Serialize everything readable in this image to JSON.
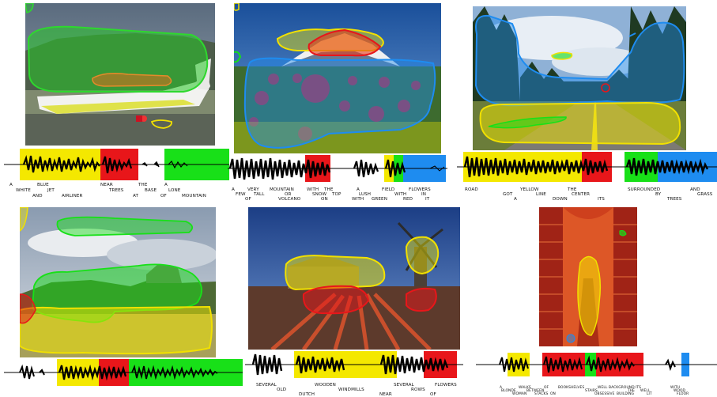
{
  "panels": [
    {
      "caption_words": [
        "A",
        "WHITE",
        "BLUE",
        "AND",
        "JET",
        "AIRLINER",
        "NEAR",
        "TREES",
        "AT",
        "THE",
        "BASE",
        "OF",
        "A",
        "LONE",
        "MOUNTAIN"
      ],
      "segment_colors": [
        "#f4e800",
        "#e8161a",
        "#f4e800",
        "#18e018"
      ]
    },
    {
      "caption_words": [
        "A",
        "FEW",
        "VERY",
        "OF",
        "TALL",
        "MOUNTAIN",
        "OR",
        "VOLCANO",
        "WITH",
        "SNOW",
        "ON",
        "THE",
        "TOP",
        "WITH",
        "A",
        "LUSH",
        "GREEN",
        "FIELD",
        "WITH",
        "RED",
        "FLOWERS",
        "IN",
        "IT"
      ],
      "segment_colors": [
        "#e8161a",
        "#f4e800",
        "#18e018",
        "#1e8cf0"
      ]
    },
    {
      "caption_words": [
        "ROAD",
        "GOT",
        "A",
        "YELLOW",
        "LINE",
        "DOWN",
        "THE",
        "CENTER",
        "ITS",
        "SURROUNDED",
        "BY",
        "TREES",
        "AND",
        "GRASS"
      ],
      "segment_colors": [
        "#f4e800",
        "#e8161a",
        "#18e018",
        "#1e8cf0"
      ]
    },
    {
      "caption_words": [],
      "segment_colors": [
        "#f4e800",
        "#e8161a",
        "#18e018"
      ]
    },
    {
      "caption_words": [
        "SEVERAL",
        "OLD",
        "DUTCH",
        "WOODEN",
        "WINDMILLS",
        "NEAR",
        "SEVERAL",
        "ROWS",
        "OF",
        "FLOWERS"
      ],
      "segment_colors": [
        "#f4e800",
        "#e8161a"
      ]
    },
    {
      "caption_words": [
        "A",
        "BLONDE",
        "WOMAN",
        "WALKS",
        "BETWEEN",
        "STACKS",
        "OF",
        "BOOKSHELVES",
        "ON",
        "STAIRS",
        "OBSESSIVE",
        "WELL",
        "BACKGROUND",
        "BUILDING",
        "ITS",
        "THE",
        "WELL",
        "LIT",
        "WITH",
        "WOOD",
        "FLOOR"
      ],
      "segment_colors": [
        "#f4e800",
        "#e8161a",
        "#18e018",
        "#1e8cf0"
      ]
    }
  ]
}
